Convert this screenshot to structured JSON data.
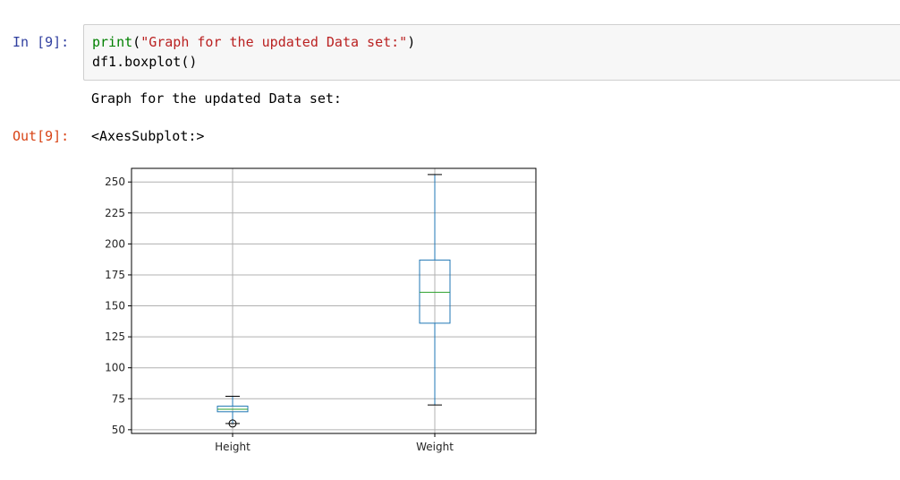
{
  "cell": {
    "in_prompt": "In [9]:",
    "out_prompt": "Out[9]:",
    "code": {
      "line1": {
        "builtin": "print",
        "open_paren": "(",
        "string": "\"Graph for the updated Data set:\"",
        "close_paren": ")"
      },
      "line2": "df1.boxplot()"
    },
    "stream_output": "Graph for the updated Data set:",
    "result_output": "<AxesSubplot:>"
  },
  "chart_data": {
    "type": "box",
    "categories": [
      "Height",
      "Weight"
    ],
    "ylim": [
      47,
      261
    ],
    "yticks": [
      50,
      75,
      100,
      125,
      150,
      175,
      200,
      225,
      250
    ],
    "grid": true,
    "boxes": [
      {
        "name": "Height",
        "whislo": 55,
        "q1": 64.5,
        "med": 66.5,
        "q3": 69,
        "whishi": 77,
        "fliers": [
          55
        ]
      },
      {
        "name": "Weight",
        "whislo": 70,
        "q1": 136,
        "med": 161,
        "q3": 187,
        "whishi": 256,
        "fliers": []
      }
    ],
    "colors": {
      "box": "#1f77b4",
      "median": "#2ca02c",
      "whisker_cap": "#000000",
      "grid": "#b0b0b0"
    }
  }
}
